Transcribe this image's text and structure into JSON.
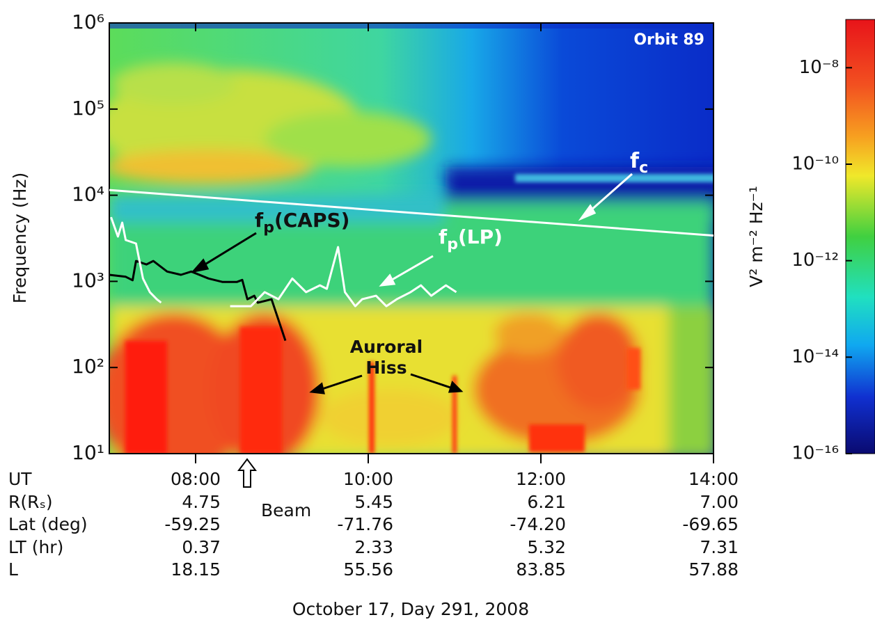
{
  "chart_data": {
    "type": "spectrogram",
    "ylabel": "Frequency (Hz)",
    "xlabel": "October 17, Day 291, 2008",
    "xlim": [
      7,
      14
    ],
    "xticks": [
      {
        "value": 8,
        "label": "08:00"
      },
      {
        "value": 10,
        "label": "10:00"
      },
      {
        "value": 12,
        "label": "12:00"
      },
      {
        "value": 14,
        "label": "14:00"
      }
    ],
    "ylim": [
      10,
      1000000
    ],
    "yscale": "log",
    "yticks": [
      {
        "value": 10,
        "label": "10¹"
      },
      {
        "value": 100,
        "label": "10²"
      },
      {
        "value": 1000,
        "label": "10³"
      },
      {
        "value": 10000,
        "label": "10⁴"
      },
      {
        "value": 100000,
        "label": "10⁵"
      },
      {
        "value": 1000000,
        "label": "10⁶"
      }
    ],
    "colorbar": {
      "label": "V² m⁻² Hz⁻¹",
      "zlim": [
        1e-16,
        1e-07
      ],
      "zticks": [
        {
          "value": 1e-08,
          "label": "10⁻⁸"
        },
        {
          "value": 1e-10,
          "label": "10⁻¹⁰"
        },
        {
          "value": 1e-12,
          "label": "10⁻¹²"
        },
        {
          "value": 1e-14,
          "label": "10⁻¹⁴"
        },
        {
          "value": 1e-16,
          "label": "10⁻¹⁶"
        }
      ]
    },
    "series": [
      {
        "name": "fc",
        "color": "#ffffff",
        "x": [
          7.0,
          14.0
        ],
        "values": [
          11500,
          3400
        ]
      },
      {
        "name": "fp (CAPS)",
        "color": "#000000",
        "x": [
          7.0,
          7.19,
          7.27,
          7.31,
          7.43,
          7.51,
          7.67,
          7.83,
          7.95,
          8.15,
          8.31,
          8.48,
          8.54,
          8.6,
          8.68,
          8.72,
          8.88,
          9.04
        ],
        "values": [
          1190,
          1130,
          1030,
          1725,
          1570,
          1725,
          1300,
          1190,
          1300,
          1080,
          985,
          985,
          1040,
          620,
          680,
          565,
          620,
          205
        ]
      },
      {
        "name": "fp (LP)",
        "color": "#ffffff",
        "x": [
          7.02,
          7.1,
          7.15,
          7.19,
          7.31,
          7.39,
          7.47,
          7.55,
          7.6,
          7.8,
          8.4,
          8.64,
          8.8,
          8.96,
          9.12,
          9.28,
          9.44,
          9.52,
          9.65,
          9.73,
          9.85,
          9.93,
          10.09,
          10.21,
          10.33,
          10.49,
          10.61,
          10.73,
          10.9,
          11.02
        ],
        "values": [
          5570,
          3310,
          4810,
          3020,
          2750,
          1080,
          750,
          620,
          566,
          null,
          515,
          515,
          750,
          620,
          1080,
          750,
          900,
          820,
          2500,
          750,
          515,
          620,
          680,
          515,
          620,
          750,
          900,
          680,
          900,
          750
        ]
      }
    ],
    "annotations": {
      "orbit": "Orbit 89",
      "fc": {
        "text": "f",
        "sub": "c"
      },
      "fp_caps": {
        "text": "f",
        "sub": "p",
        "suffix": "(CAPS)"
      },
      "fp_lp": {
        "text": "f",
        "sub": "p",
        "suffix": "(LP)"
      },
      "hiss": [
        "Auroral",
        "Hiss"
      ],
      "beam": "Beam"
    },
    "ephemeris": {
      "ut_label": "UT",
      "rows": [
        {
          "label": "R(Rₛ)",
          "values": [
            "4.75",
            "5.45",
            "6.21",
            "7.00"
          ]
        },
        {
          "label": "Lat (deg)",
          "values": [
            "-59.25",
            "-71.76",
            "-74.20",
            "-69.65"
          ]
        },
        {
          "label": "LT (hr)",
          "values": [
            "0.37",
            "2.33",
            "5.32",
            "7.31"
          ]
        },
        {
          "label": "L",
          "values": [
            "18.15",
            "55.56",
            "83.85",
            "57.88"
          ]
        }
      ]
    }
  }
}
